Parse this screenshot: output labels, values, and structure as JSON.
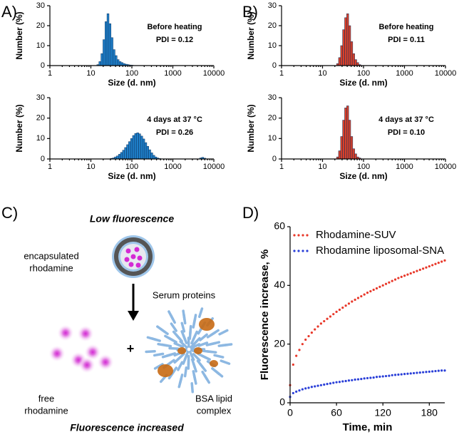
{
  "panel_labels": [
    "A)",
    "B)",
    "C)",
    "D)"
  ],
  "chart_data": [
    {
      "type": "histogram",
      "ylabel": "Number (%)",
      "xlabel": "Size (d. nm)",
      "annotations": [
        "Before heating",
        "PDI = 0.12"
      ],
      "color": "#1f7fc9",
      "bins": [
        14,
        15.7,
        17.6,
        19.7,
        22.1,
        24.7,
        27.7,
        31.0,
        34.7,
        38.9,
        43.6,
        48.8,
        54.7,
        61.2,
        68.6,
        76.8,
        86.0,
        96.4,
        108
      ],
      "values": [
        0.5,
        2,
        6,
        13,
        22,
        26,
        21,
        14,
        8,
        5,
        3,
        2,
        1.5,
        1,
        0.7,
        0.5,
        0.3,
        0.2
      ],
      "log_x": true,
      "xlim": [
        1,
        10000
      ],
      "xticks": [
        1,
        10,
        100,
        1000,
        10000
      ],
      "ylim": [
        0,
        30
      ],
      "yticks": [
        0,
        10,
        20,
        30
      ]
    },
    {
      "type": "histogram",
      "ylabel": "Number (%)",
      "xlabel": "Size (d. nm)",
      "annotations": [
        "4 days at 37 °C",
        "PDI = 0.26"
      ],
      "color": "#1f7fc9",
      "bins": [
        30,
        33.6,
        37.6,
        42.1,
        47.2,
        52.8,
        59.2,
        66.3,
        74.2,
        83.1,
        93.1,
        104,
        117,
        131,
        147,
        164,
        184,
        206,
        231,
        258,
        289,
        324,
        363,
        406,
        455,
        510,
        4500,
        5040,
        5650,
        6330
      ],
      "values": [
        0.3,
        0.5,
        1,
        1.5,
        2.3,
        3.2,
        4.3,
        5.6,
        7,
        8.5,
        10,
        11.5,
        12.5,
        12.8,
        12.3,
        11.2,
        9.8,
        8,
        6.2,
        4.5,
        3,
        1.8,
        1,
        0.5,
        0.2,
        0,
        0.5,
        0.8,
        0.4
      ],
      "log_x": true,
      "xlim": [
        1,
        10000
      ],
      "xticks": [
        1,
        10,
        100,
        1000,
        10000
      ],
      "ylim": [
        0,
        30
      ],
      "yticks": [
        0,
        10,
        20,
        30
      ]
    },
    {
      "type": "histogram",
      "ylabel": "Number (%)",
      "xlabel": "Size (d. nm)",
      "annotations": [
        "Before heating",
        "PDI = 0.11"
      ],
      "color": "#d9402a",
      "bins": [
        22,
        24.6,
        27.6,
        30.9,
        34.6,
        38.8,
        43.4,
        48.6,
        54.5,
        61,
        68.3,
        76.5,
        85.7
      ],
      "values": [
        1,
        4,
        10,
        18,
        24,
        26,
        20,
        12,
        6,
        3,
        1.5,
        0.5
      ],
      "log_x": true,
      "xlim": [
        1,
        10000
      ],
      "xticks": [
        1,
        10,
        100,
        1000,
        10000
      ],
      "ylim": [
        0,
        30
      ],
      "yticks": [
        0,
        10,
        20,
        30
      ]
    },
    {
      "type": "histogram",
      "ylabel": "Number (%)",
      "xlabel": "Size (d. nm)",
      "annotations": [
        "4 days at 37 °C",
        "PDI = 0.10"
      ],
      "color": "#d9402a",
      "bins": [
        22,
        24.6,
        27.6,
        30.9,
        34.6,
        38.8,
        43.4,
        48.6,
        54.5,
        61,
        68.3,
        76.5,
        85.7
      ],
      "values": [
        1,
        4,
        11,
        19,
        25,
        26,
        19,
        11,
        5,
        2.5,
        1,
        0.5
      ],
      "log_x": true,
      "xlim": [
        1,
        10000
      ],
      "xticks": [
        1,
        10,
        100,
        1000,
        10000
      ],
      "ylim": [
        0,
        30
      ],
      "yticks": [
        0,
        10,
        20,
        30
      ]
    },
    {
      "type": "scatter",
      "xlabel": "Time, min",
      "ylabel": "Fluorescence increase, %",
      "legend": "upper left",
      "x": [
        0,
        4,
        8,
        12,
        16,
        20,
        24,
        28,
        32,
        36,
        40,
        44,
        48,
        52,
        56,
        60,
        64,
        68,
        72,
        76,
        80,
        84,
        88,
        92,
        96,
        100,
        104,
        108,
        112,
        116,
        120,
        124,
        128,
        132,
        136,
        140,
        144,
        148,
        152,
        156,
        160,
        164,
        168,
        172,
        176,
        180,
        184,
        188,
        192,
        196,
        200
      ],
      "series": [
        {
          "name": "Rhodamine-SUV",
          "color": "#e8382a",
          "values": [
            6,
            13,
            16,
            18,
            20,
            21.5,
            22.7,
            23.9,
            25,
            26,
            27,
            27.8,
            28.6,
            29.4,
            30.2,
            31,
            31.7,
            32.4,
            33.1,
            33.8,
            34.5,
            35.1,
            35.7,
            36.3,
            36.9,
            37.5,
            38,
            38.5,
            39,
            39.5,
            40,
            40.5,
            41,
            41.5,
            42,
            42.5,
            42.9,
            43.3,
            43.7,
            44.1,
            44.5,
            44.9,
            45.3,
            45.7,
            46.1,
            46.5,
            46.9,
            47.3,
            47.7,
            48.1,
            48.5
          ]
        },
        {
          "name": "Rhodamine liposomal-SNA",
          "color": "#2a3fd8",
          "values": [
            2,
            3.3,
            3.8,
            4.2,
            4.6,
            4.9,
            5.1,
            5.4,
            5.6,
            5.8,
            6.0,
            6.2,
            6.4,
            6.6,
            6.8,
            7.0,
            7.1,
            7.3,
            7.4,
            7.6,
            7.7,
            7.9,
            8.0,
            8.1,
            8.3,
            8.4,
            8.5,
            8.6,
            8.8,
            8.9,
            9.0,
            9.1,
            9.2,
            9.4,
            9.5,
            9.6,
            9.7,
            9.8,
            9.9,
            10.0,
            10.1,
            10.2,
            10.3,
            10.4,
            10.5,
            10.6,
            10.7,
            10.8,
            10.9,
            11.0,
            11.0
          ]
        }
      ],
      "xlim": [
        0,
        200
      ],
      "xticks": [
        0,
        60,
        120,
        180
      ],
      "ylim": [
        0,
        60
      ],
      "yticks": [
        0,
        20,
        40,
        60
      ]
    }
  ],
  "diagram": {
    "top_title": "Low fluorescence",
    "encapsulated": [
      "encapsulated",
      "rhodamine"
    ],
    "arrow_label": "Serum proteins",
    "plus": "+",
    "free": [
      "free",
      "rhodamine"
    ],
    "complex": [
      "BSA lipid",
      "complex"
    ],
    "bottom_title": "Fluorescence increased"
  }
}
